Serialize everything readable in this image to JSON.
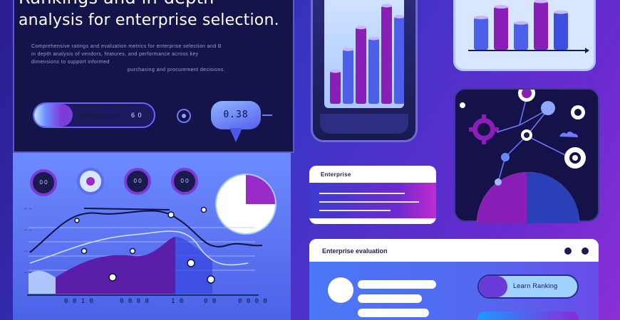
{
  "hero": {
    "title_line1": "Rankings and in-depth",
    "title_line2": "analysis for enterprise  selection."
  },
  "blurb_lines": [
    "Comprehensive ratings and evaluation metrics for enterprise selection and B",
    "in depth analysis of vendors, features, and performance across key",
    "dimensions to support informed",
    "purchasing and procurement decisions."
  ],
  "progress": {
    "value_text": "6 0",
    "fraction": 0.32
  },
  "bubble": {
    "text": "0.38"
  },
  "donuts": [
    "0 0",
    "",
    "0 0",
    "0 0"
  ],
  "line_chart": {
    "x_labels": [
      "0 0 1 0",
      "0 0 0 0",
      "1 0",
      "0 0",
      "0 0 0 0"
    ],
    "colors": {
      "area": "#5a1ea8",
      "line": "#0f1244",
      "light": "#c4dcff"
    }
  },
  "bar_chart_phone": {
    "values": [
      3,
      5,
      7,
      6,
      9,
      8
    ],
    "colors": [
      "#8a1fb8",
      "#4d5ee8",
      "#8a1fb8",
      "#4d5ee8",
      "#8a1fb8",
      "#4d5ee8"
    ]
  },
  "bar_chart_card": {
    "values": [
      6,
      8,
      5,
      9,
      7
    ],
    "colors": [
      "#4d5ee8",
      "#8a1fb8",
      "#4d5ee8",
      "#8a1fb8",
      "#3c4fdc"
    ]
  },
  "search_card": {
    "header": "Enterprise"
  },
  "bottom_card": {
    "title": "Enterprise evaluation",
    "cta_label": "Learn Ranking"
  },
  "icons": [
    "gear-icon",
    "cloud-icon",
    "node-icon"
  ]
}
